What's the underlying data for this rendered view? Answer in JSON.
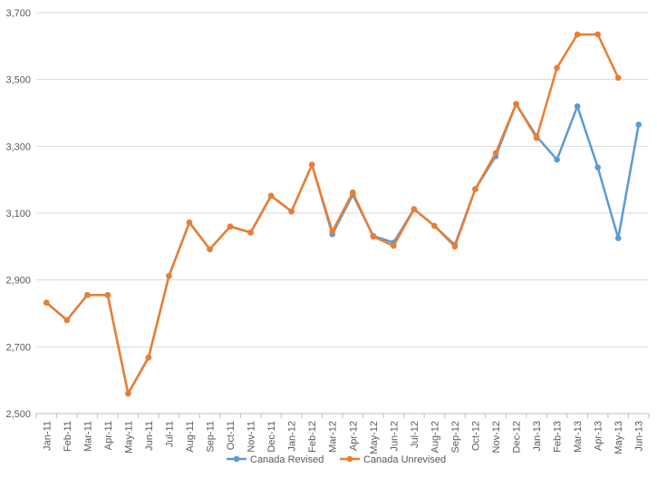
{
  "chart_data": {
    "type": "line",
    "title": "",
    "xlabel": "",
    "ylabel": "",
    "ylim": [
      2500,
      3700
    ],
    "yticks": [
      "2,500",
      "2,700",
      "2,900",
      "3,100",
      "3,300",
      "3,500",
      "3,700"
    ],
    "ytick_values": [
      2500,
      2700,
      2900,
      3100,
      3300,
      3500,
      3700
    ],
    "grid": true,
    "legend_position": "bottom",
    "categories": [
      "Jan-11",
      "Feb-11",
      "Mar-11",
      "Apr-11",
      "May-11",
      "Jun-11",
      "Jul-11",
      "Aug-11",
      "Sep-11",
      "Oct-11",
      "Nov-11",
      "Dec-11",
      "Jan-12",
      "Feb-12",
      "Mar-12",
      "Apr-12",
      "May-12",
      "Jun-12",
      "Jul-12",
      "Aug-12",
      "Sep-12",
      "Oct-12",
      "Nov-12",
      "Dec-12",
      "Jan-13",
      "Feb-13",
      "Mar-13",
      "Apr-13",
      "May-13",
      "Jun-13"
    ],
    "series": [
      {
        "name": "Canada Revised",
        "color": "#5b9bd5",
        "values": [
          2832,
          2780,
          2855,
          2855,
          2560,
          2668,
          2912,
          3072,
          2992,
          3060,
          3042,
          3152,
          3105,
          3245,
          3037,
          3155,
          3032,
          3012,
          3112,
          3062,
          3005,
          3172,
          3270,
          3427,
          3330,
          3260,
          3420,
          3237,
          3025,
          3365
        ]
      },
      {
        "name": "Canada Unrevised",
        "color": "#ed7d31",
        "values": [
          2832,
          2780,
          2855,
          2855,
          2560,
          2668,
          2912,
          3072,
          2992,
          3060,
          3042,
          3152,
          3105,
          3245,
          3045,
          3162,
          3030,
          3002,
          3112,
          3062,
          3000,
          3172,
          3280,
          3427,
          3325,
          3535,
          3635,
          3635,
          3505,
          null
        ]
      }
    ]
  }
}
